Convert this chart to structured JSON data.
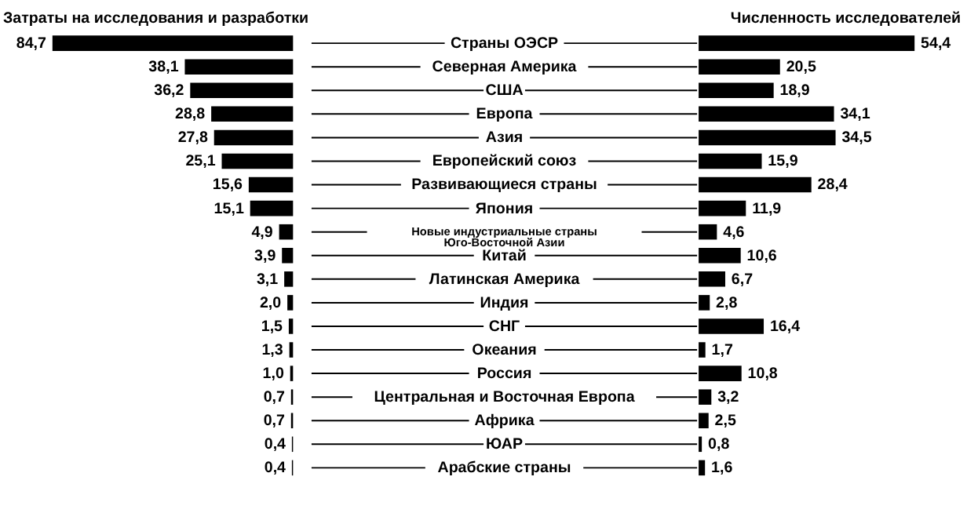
{
  "chart_data": [
    {
      "type": "bar",
      "orientation": "horizontal",
      "title": "Затраты на исследования и разработки",
      "categories": [
        "Страны ОЭСР",
        "Северная Америка",
        "США",
        "Европа",
        "Азия",
        "Европейский союз",
        "Развивающиеся страны",
        "Япония",
        "Новые индустриальные страны\nЮго-Восточной Азии",
        "Китай",
        "Латинская Америка",
        "Индия",
        "СНГ",
        "Океания",
        "Россия",
        "Центральная и Восточная Европа",
        "Африка",
        "ЮАР",
        "Арабские страны"
      ],
      "values": [
        84.7,
        38.1,
        36.2,
        28.8,
        27.8,
        25.1,
        15.6,
        15.1,
        4.9,
        3.9,
        3.1,
        2.0,
        1.5,
        1.3,
        1.0,
        0.7,
        0.7,
        0.4,
        0.4
      ],
      "value_labels": [
        "84,7",
        "38,1",
        "36,2",
        "28,8",
        "27,8",
        "25,1",
        "15,6",
        "15,1",
        "4,9",
        "3,9",
        "3,1",
        "2,0",
        "1,5",
        "1,3",
        "1,0",
        "0,7",
        "0,7",
        "0,4",
        "0,4"
      ],
      "color": "#000000",
      "tick_labels": "y"
    },
    {
      "type": "bar",
      "orientation": "horizontal",
      "title": "Численность исследователей",
      "categories": [
        null,
        null,
        null,
        null,
        null,
        null,
        null,
        null,
        null,
        null,
        null,
        null,
        null,
        null,
        null,
        null,
        null,
        null,
        null
      ],
      "values": [
        54.4,
        20.5,
        18.9,
        34.1,
        34.5,
        15.9,
        28.4,
        11.9,
        4.6,
        10.6,
        6.7,
        2.8,
        16.4,
        1.7,
        10.8,
        3.2,
        2.5,
        0.8,
        1.6
      ],
      "value_labels": [
        "54,4",
        "20,5",
        "18,9",
        "34,1",
        "34,5",
        "15,9",
        "28,4",
        "11,9",
        "4,6",
        "10,6",
        "6,7",
        "2,8",
        "16,4",
        "1,7",
        "10,8",
        "3,2",
        "2,5",
        "0,8",
        "1,6"
      ],
      "color": "#000000"
    }
  ]
}
